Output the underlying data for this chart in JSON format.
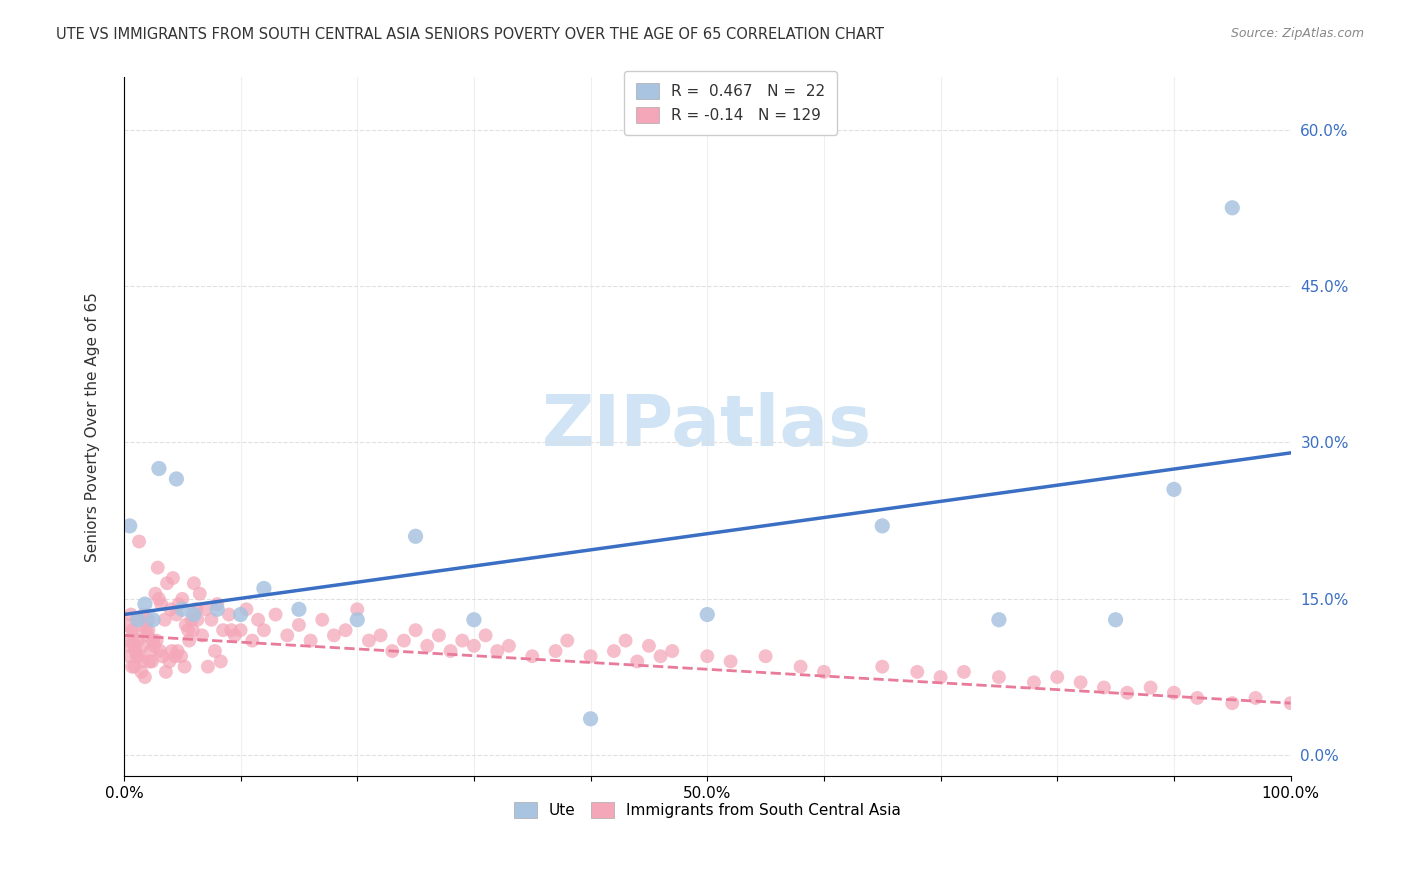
{
  "title": "UTE VS IMMIGRANTS FROM SOUTH CENTRAL ASIA SENIORS POVERTY OVER THE AGE OF 65 CORRELATION CHART",
  "source": "Source: ZipAtlas.com",
  "xlabel": "",
  "ylabel": "Seniors Poverty Over the Age of 65",
  "xlim": [
    0,
    100
  ],
  "ylim": [
    -2,
    65
  ],
  "yticks": [
    0,
    15,
    30,
    45,
    60
  ],
  "ytick_labels": [
    "0.0%",
    "15.0%",
    "30.0%",
    "45.0%",
    "60.0%"
  ],
  "xticks": [
    0,
    10,
    20,
    30,
    40,
    50,
    60,
    70,
    80,
    90,
    100
  ],
  "xtick_labels": [
    "0.0%",
    "",
    "",
    "",
    "",
    "50.0%",
    "",
    "",
    "",
    "",
    "100.0%"
  ],
  "blue_R": 0.467,
  "blue_N": 22,
  "pink_R": -0.14,
  "pink_N": 129,
  "blue_color": "#a8c4e0",
  "pink_color": "#f4a7b9",
  "blue_line_color": "#3a6fc4",
  "pink_line_color": "#e87a9a",
  "watermark_color": "#d0e4f5",
  "background_color": "#ffffff",
  "grid_color": "#e0e0e0",
  "blue_scatter_x": [
    0.5,
    1.2,
    1.8,
    2.5,
    3.0,
    4.5,
    5.0,
    6.0,
    8.0,
    10.0,
    12.0,
    15.0,
    20.0,
    25.0,
    30.0,
    40.0,
    50.0,
    65.0,
    75.0,
    85.0,
    90.0,
    95.0
  ],
  "blue_scatter_y": [
    22.0,
    13.0,
    14.5,
    13.0,
    27.5,
    26.5,
    14.0,
    13.5,
    14.0,
    13.5,
    16.0,
    14.0,
    13.0,
    21.0,
    13.0,
    3.5,
    13.5,
    22.0,
    13.0,
    13.0,
    25.5,
    52.5
  ],
  "pink_scatter_x": [
    0.3,
    0.4,
    0.5,
    0.6,
    0.7,
    0.8,
    0.9,
    1.0,
    1.1,
    1.2,
    1.3,
    1.4,
    1.5,
    1.6,
    1.7,
    1.8,
    2.0,
    2.1,
    2.2,
    2.3,
    2.5,
    2.7,
    2.9,
    3.0,
    3.2,
    3.5,
    3.7,
    4.0,
    4.2,
    4.5,
    4.7,
    5.0,
    5.3,
    5.5,
    5.8,
    6.0,
    6.2,
    6.5,
    7.0,
    7.5,
    8.0,
    8.5,
    9.0,
    9.5,
    10.0,
    10.5,
    11.0,
    11.5,
    12.0,
    13.0,
    14.0,
    15.0,
    16.0,
    17.0,
    18.0,
    19.0,
    20.0,
    21.0,
    22.0,
    23.0,
    24.0,
    25.0,
    26.0,
    27.0,
    28.0,
    29.0,
    30.0,
    31.0,
    32.0,
    33.0,
    35.0,
    37.0,
    38.0,
    40.0,
    42.0,
    43.0,
    44.0,
    45.0,
    46.0,
    47.0,
    50.0,
    52.0,
    55.0,
    58.0,
    60.0,
    65.0,
    68.0,
    70.0,
    72.0,
    75.0,
    78.0,
    80.0,
    82.0,
    84.0,
    86.0,
    88.0,
    90.0,
    92.0,
    95.0,
    97.0,
    100.0,
    0.5,
    0.7,
    0.9,
    1.1,
    1.3,
    1.6,
    1.9,
    2.1,
    2.4,
    2.6,
    2.8,
    3.1,
    3.3,
    3.6,
    3.9,
    4.1,
    4.4,
    4.6,
    4.9,
    5.2,
    5.6,
    5.9,
    6.3,
    6.7,
    7.2,
    7.8,
    8.3,
    9.2
  ],
  "pink_scatter_y": [
    12.5,
    11.0,
    10.5,
    13.5,
    12.0,
    11.5,
    8.5,
    10.0,
    13.0,
    11.0,
    9.5,
    12.5,
    8.0,
    10.5,
    13.5,
    7.5,
    11.5,
    12.0,
    9.0,
    10.0,
    11.0,
    15.5,
    18.0,
    15.0,
    14.5,
    13.0,
    16.5,
    14.0,
    17.0,
    13.5,
    14.5,
    15.0,
    12.5,
    12.0,
    13.0,
    16.5,
    14.0,
    15.5,
    14.0,
    13.0,
    14.5,
    12.0,
    13.5,
    11.5,
    12.0,
    14.0,
    11.0,
    13.0,
    12.0,
    13.5,
    11.5,
    12.5,
    11.0,
    13.0,
    11.5,
    12.0,
    14.0,
    11.0,
    11.5,
    10.0,
    11.0,
    12.0,
    10.5,
    11.5,
    10.0,
    11.0,
    10.5,
    11.5,
    10.0,
    10.5,
    9.5,
    10.0,
    11.0,
    9.5,
    10.0,
    11.0,
    9.0,
    10.5,
    9.5,
    10.0,
    9.5,
    9.0,
    9.5,
    8.5,
    8.0,
    8.5,
    8.0,
    7.5,
    8.0,
    7.5,
    7.0,
    7.5,
    7.0,
    6.5,
    6.0,
    6.5,
    6.0,
    5.5,
    5.0,
    5.5,
    5.0,
    9.5,
    8.5,
    10.5,
    9.5,
    20.5,
    9.0,
    12.0,
    13.0,
    9.0,
    10.5,
    11.0,
    10.0,
    9.5,
    8.0,
    9.0,
    10.0,
    9.5,
    10.0,
    9.5,
    8.5,
    11.0,
    12.0,
    13.0,
    11.5,
    8.5,
    10.0,
    9.0,
    12.0
  ]
}
